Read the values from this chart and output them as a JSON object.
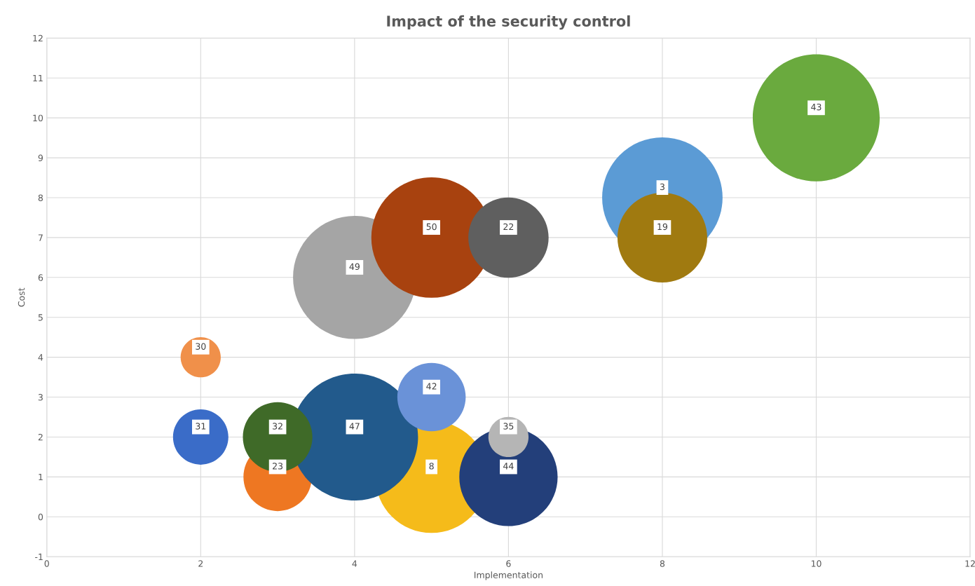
{
  "chart_data": {
    "type": "bubble",
    "title": "Impact of the security control",
    "xlabel": "Implementation",
    "ylabel": "Cost",
    "series": [
      {
        "name": "43",
        "color": "#6aaa3e",
        "x": [
          10
        ],
        "values": [
          10
        ],
        "sizes": [
          1.0
        ]
      },
      {
        "name": "3",
        "color": "#5b9bd5",
        "x": [
          8
        ],
        "values": [
          8
        ],
        "sizes": [
          0.9
        ]
      },
      {
        "name": "19",
        "color": "#a07a10",
        "x": [
          8
        ],
        "values": [
          7
        ],
        "sizes": [
          0.5
        ]
      },
      {
        "name": "49",
        "color": "#a5a5a5",
        "x": [
          4
        ],
        "values": [
          6
        ],
        "sizes": [
          0.94
        ]
      },
      {
        "name": "50",
        "color": "#a8420f",
        "x": [
          5
        ],
        "values": [
          7
        ],
        "sizes": [
          0.9
        ]
      },
      {
        "name": "22",
        "color": "#5f5f5f",
        "x": [
          6
        ],
        "values": [
          7
        ],
        "sizes": [
          0.4
        ]
      },
      {
        "name": "30",
        "color": "#f0904a",
        "x": [
          2
        ],
        "values": [
          4
        ],
        "sizes": [
          0.1
        ]
      },
      {
        "name": "31",
        "color": "#3a6cc8",
        "x": [
          2
        ],
        "values": [
          2
        ],
        "sizes": [
          0.19
        ]
      },
      {
        "name": "23",
        "color": "#ee7722",
        "x": [
          3
        ],
        "values": [
          1
        ],
        "sizes": [
          0.29
        ]
      },
      {
        "name": "8",
        "color": "#f5bb1a",
        "x": [
          5
        ],
        "values": [
          1
        ],
        "sizes": [
          0.78
        ]
      },
      {
        "name": "47",
        "color": "#225a8c",
        "x": [
          4
        ],
        "values": [
          2
        ],
        "sizes": [
          1.0
        ]
      },
      {
        "name": "32",
        "color": "#3f6a28",
        "x": [
          3
        ],
        "values": [
          2
        ],
        "sizes": [
          0.3
        ]
      },
      {
        "name": "42",
        "color": "#6a92d8",
        "x": [
          5
        ],
        "values": [
          3
        ],
        "sizes": [
          0.29
        ]
      },
      {
        "name": "44",
        "color": "#233f7a",
        "x": [
          6
        ],
        "values": [
          1
        ],
        "sizes": [
          0.6
        ]
      },
      {
        "name": "35",
        "color": "#b5b5b5",
        "x": [
          6
        ],
        "values": [
          2
        ],
        "sizes": [
          0.1
        ]
      }
    ],
    "xlim": [
      0,
      12
    ],
    "xticks": [
      0,
      2,
      4,
      6,
      8,
      10,
      12
    ],
    "ylim": [
      -1,
      12
    ],
    "yticks": [
      -1,
      0,
      1,
      2,
      3,
      4,
      5,
      6,
      7,
      8,
      9,
      10,
      11,
      12
    ],
    "grid": true
  }
}
